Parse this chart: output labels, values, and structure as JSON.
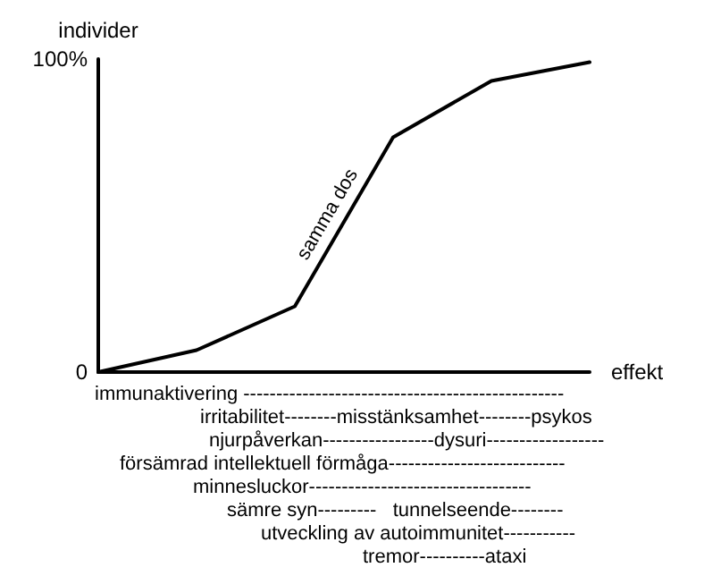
{
  "chart_data": {
    "type": "line",
    "ylabel": "individer",
    "xlabel": "effekt",
    "categories": [
      null,
      null,
      null,
      null,
      null,
      null
    ],
    "series": [
      {
        "color": "#000000",
        "values": [
          0,
          7,
          21,
          75,
          93,
          99
        ]
      }
    ],
    "ylim": [
      0,
      100
    ],
    "yticks": [
      0,
      {
        "value": 100,
        "label": "100%"
      }
    ],
    "tick_labels": "y",
    "grid": false,
    "marker": "none",
    "line_style": "solid",
    "annotations": [
      "samma dos",
      "immunaktivering -------------------------------------------------",
      "irritabilitet--------misstänksamhet--------psykos",
      "njurpåverkan-----------------dysuri------------------",
      "försämrad intellektuell förmåga---------------------------",
      "minnesluckor----------------------------------",
      "sämre syn---------   tunnelseende--------",
      "utveckling av autoimmunitet-----------",
      "tremor----------ataxi"
    ]
  }
}
